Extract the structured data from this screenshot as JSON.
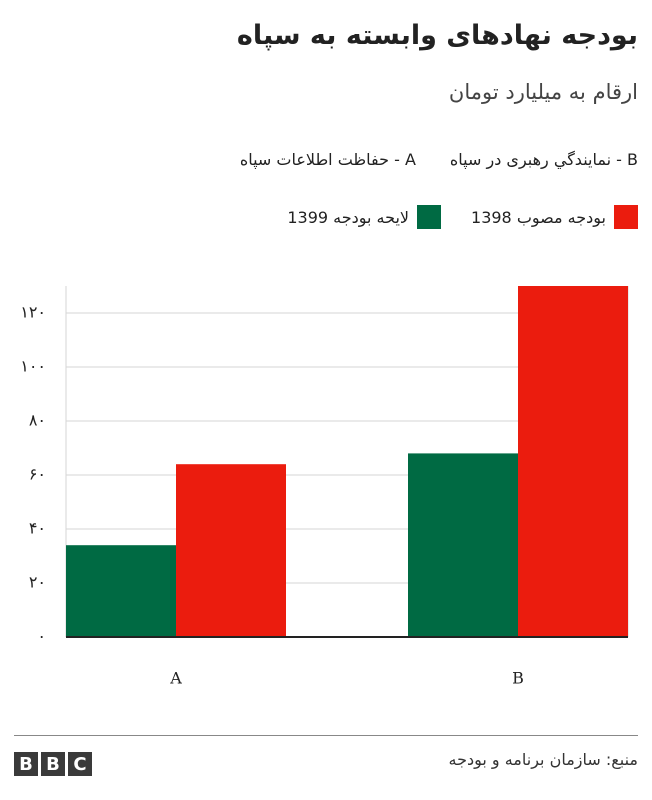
{
  "chart_data": {
    "type": "bar",
    "title": "بودجه نهادهای وابسته به سپاه",
    "subtitle": "ارقام به میلیارد تومان",
    "annotations": [
      "B - نمایندگي رهبری در سپاه",
      "A - حفاظت اطلاعات سپاه"
    ],
    "categories": [
      "A",
      "B"
    ],
    "series": [
      {
        "name": "لایحه بودجه 1399",
        "color": "#006a43",
        "values": [
          34,
          68
        ]
      },
      {
        "name": "بودجه مصوب 1398",
        "color": "#eb1c0e",
        "values": [
          64,
          130
        ]
      }
    ],
    "ylim": [
      0,
      130
    ],
    "yticks": [
      {
        "value": 0,
        "label": "۰"
      },
      {
        "value": 20,
        "label": "۲۰"
      },
      {
        "value": 40,
        "label": "۴۰"
      },
      {
        "value": 60,
        "label": "۶۰"
      },
      {
        "value": 80,
        "label": "۸۰"
      },
      {
        "value": 100,
        "label": "۱۰۰"
      },
      {
        "value": 120,
        "label": "۱۲۰"
      }
    ],
    "grid": true,
    "source": "منبع: سازمان برنامه و بودجه",
    "logo": [
      "B",
      "B",
      "C"
    ]
  }
}
